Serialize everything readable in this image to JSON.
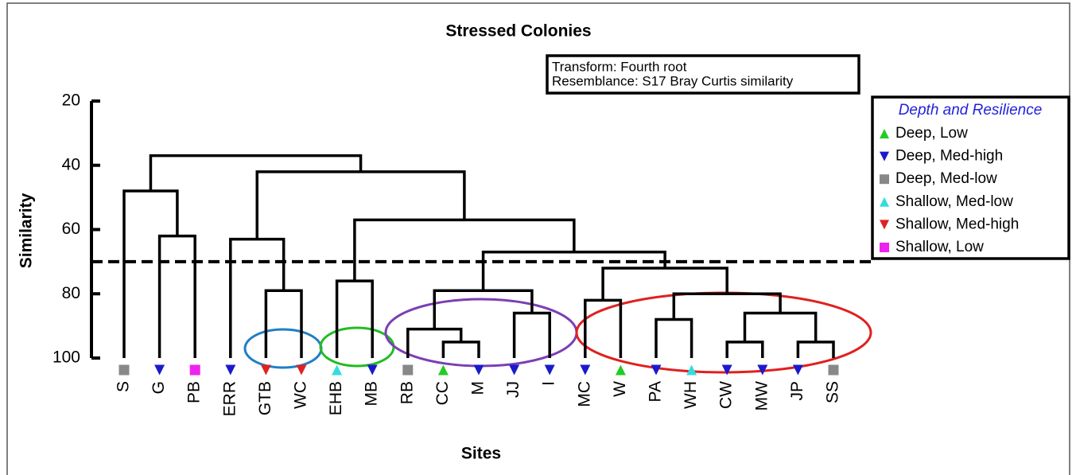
{
  "chart_data": {
    "type": "dendrogram",
    "title": "Stressed Colonies",
    "xlabel": "Sites",
    "ylabel": "Similarity",
    "annotation": [
      "Transform: Fourth root",
      "Resemblance: S17 Bray Curtis similarity"
    ],
    "ylim": [
      20,
      100
    ],
    "yticks": [
      20,
      40,
      60,
      80,
      100
    ],
    "cutoff": 70,
    "categories": [
      "S",
      "G",
      "PB",
      "ERR",
      "GTB",
      "WC",
      "EHB",
      "MB",
      "RB",
      "CC",
      "M",
      "JJ",
      "I",
      "MC",
      "W",
      "PA",
      "WH",
      "CW",
      "MW",
      "JP",
      "SS"
    ],
    "leaf_groups": [
      2,
      1,
      5,
      1,
      4,
      4,
      3,
      1,
      2,
      0,
      1,
      1,
      1,
      1,
      0,
      1,
      3,
      1,
      1,
      1,
      2
    ],
    "merges": [
      {
        "nodes": [
          1,
          2
        ],
        "height": 62
      },
      {
        "nodes": [
          0,
          21
        ],
        "height": 48
      },
      {
        "nodes": [
          4,
          5
        ],
        "height": 79
      },
      {
        "nodes": [
          3,
          23
        ],
        "height": 63
      },
      {
        "nodes": [
          6,
          7
        ],
        "height": 76
      },
      {
        "nodes": [
          9,
          10
        ],
        "height": 95
      },
      {
        "nodes": [
          8,
          26
        ],
        "height": 91
      },
      {
        "nodes": [
          11,
          12
        ],
        "height": 86
      },
      {
        "nodes": [
          27,
          28
        ],
        "height": 79
      },
      {
        "nodes": [
          13,
          14
        ],
        "height": 82
      },
      {
        "nodes": [
          15,
          16
        ],
        "height": 88
      },
      {
        "nodes": [
          17,
          18
        ],
        "height": 95
      },
      {
        "nodes": [
          19,
          20
        ],
        "height": 95
      },
      {
        "nodes": [
          32,
          33
        ],
        "height": 86
      },
      {
        "nodes": [
          31,
          34
        ],
        "height": 80
      },
      {
        "nodes": [
          30,
          35
        ],
        "height": 72
      },
      {
        "nodes": [
          29,
          36
        ],
        "height": 67
      },
      {
        "nodes": [
          25,
          37
        ],
        "height": 57
      },
      {
        "nodes": [
          24,
          38
        ],
        "height": 42
      },
      {
        "nodes": [
          22,
          39
        ],
        "height": 37
      }
    ],
    "legend": {
      "title": "Depth and Resilience",
      "items": [
        {
          "name": "Deep, Low",
          "color": "#22cc22",
          "shape": "triangle-up"
        },
        {
          "name": "Deep, Med-high",
          "color": "#1a1acc",
          "shape": "triangle-down"
        },
        {
          "name": "Deep, Med-low",
          "color": "#888888",
          "shape": "square"
        },
        {
          "name": "Shallow, Med-low",
          "color": "#33dddd",
          "shape": "triangle-up"
        },
        {
          "name": "Shallow, Med-high",
          "color": "#dd2222",
          "shape": "triangle-down"
        },
        {
          "name": "Shallow, Low",
          "color": "#ee22ee",
          "shape": "square"
        }
      ]
    }
  }
}
